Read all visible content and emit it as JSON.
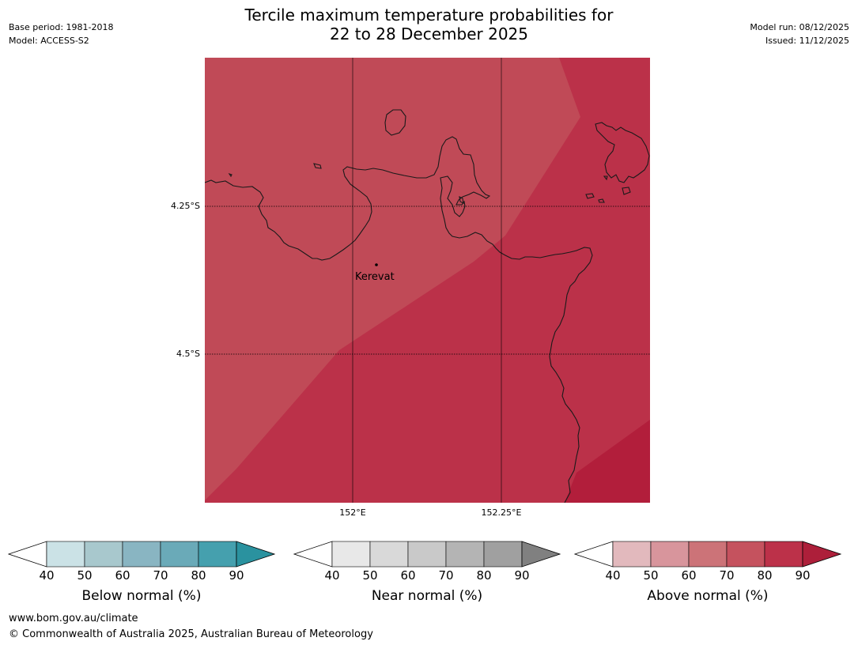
{
  "header": {
    "base_period": "Base period: 1981-2018",
    "model": "Model: ACCESS-S2",
    "title_line1": "Tercile maximum temperature probabilities for",
    "title_line2": "22 to 28 December 2025",
    "model_run": "Model run: 08/12/2025",
    "issued": "Issued: 11/12/2025"
  },
  "map": {
    "lat_labels": [
      "4.25°S",
      "4.5°S"
    ],
    "lon_labels": [
      "152°E",
      "152.25°E"
    ],
    "place_label": "Kerevat",
    "colors": {
      "above_60_70": "#c04a57",
      "above_70_80": "#bb3149",
      "above_80_90": "#b21e3b",
      "coastline": "#1a1a1a",
      "grid": "#000000"
    }
  },
  "legends": [
    {
      "label": "Below normal (%)",
      "ticks": [
        "40",
        "50",
        "60",
        "70",
        "80",
        "90"
      ],
      "colors": [
        "#ffffff",
        "#cbe2e6",
        "#a8c8cd",
        "#89b5c2",
        "#6aaab8",
        "#45a0ae",
        "#2a929f"
      ]
    },
    {
      "label": "Near normal (%)",
      "ticks": [
        "40",
        "50",
        "60",
        "70",
        "80",
        "90"
      ],
      "colors": [
        "#ffffff",
        "#e8e8e8",
        "#d9d9d9",
        "#c9c9c9",
        "#b4b4b4",
        "#a0a0a0",
        "#808080"
      ]
    },
    {
      "label": "Above normal (%)",
      "ticks": [
        "40",
        "50",
        "60",
        "70",
        "80",
        "90"
      ],
      "colors": [
        "#ffffff",
        "#e2b9bd",
        "#d8959c",
        "#cc7378",
        "#c5525e",
        "#bc3149",
        "#ad1f3a"
      ]
    }
  ],
  "footer": {
    "url": "www.bom.gov.au/climate",
    "copyright": "© Commonwealth of Australia 2025, Australian Bureau of Meteorology"
  }
}
